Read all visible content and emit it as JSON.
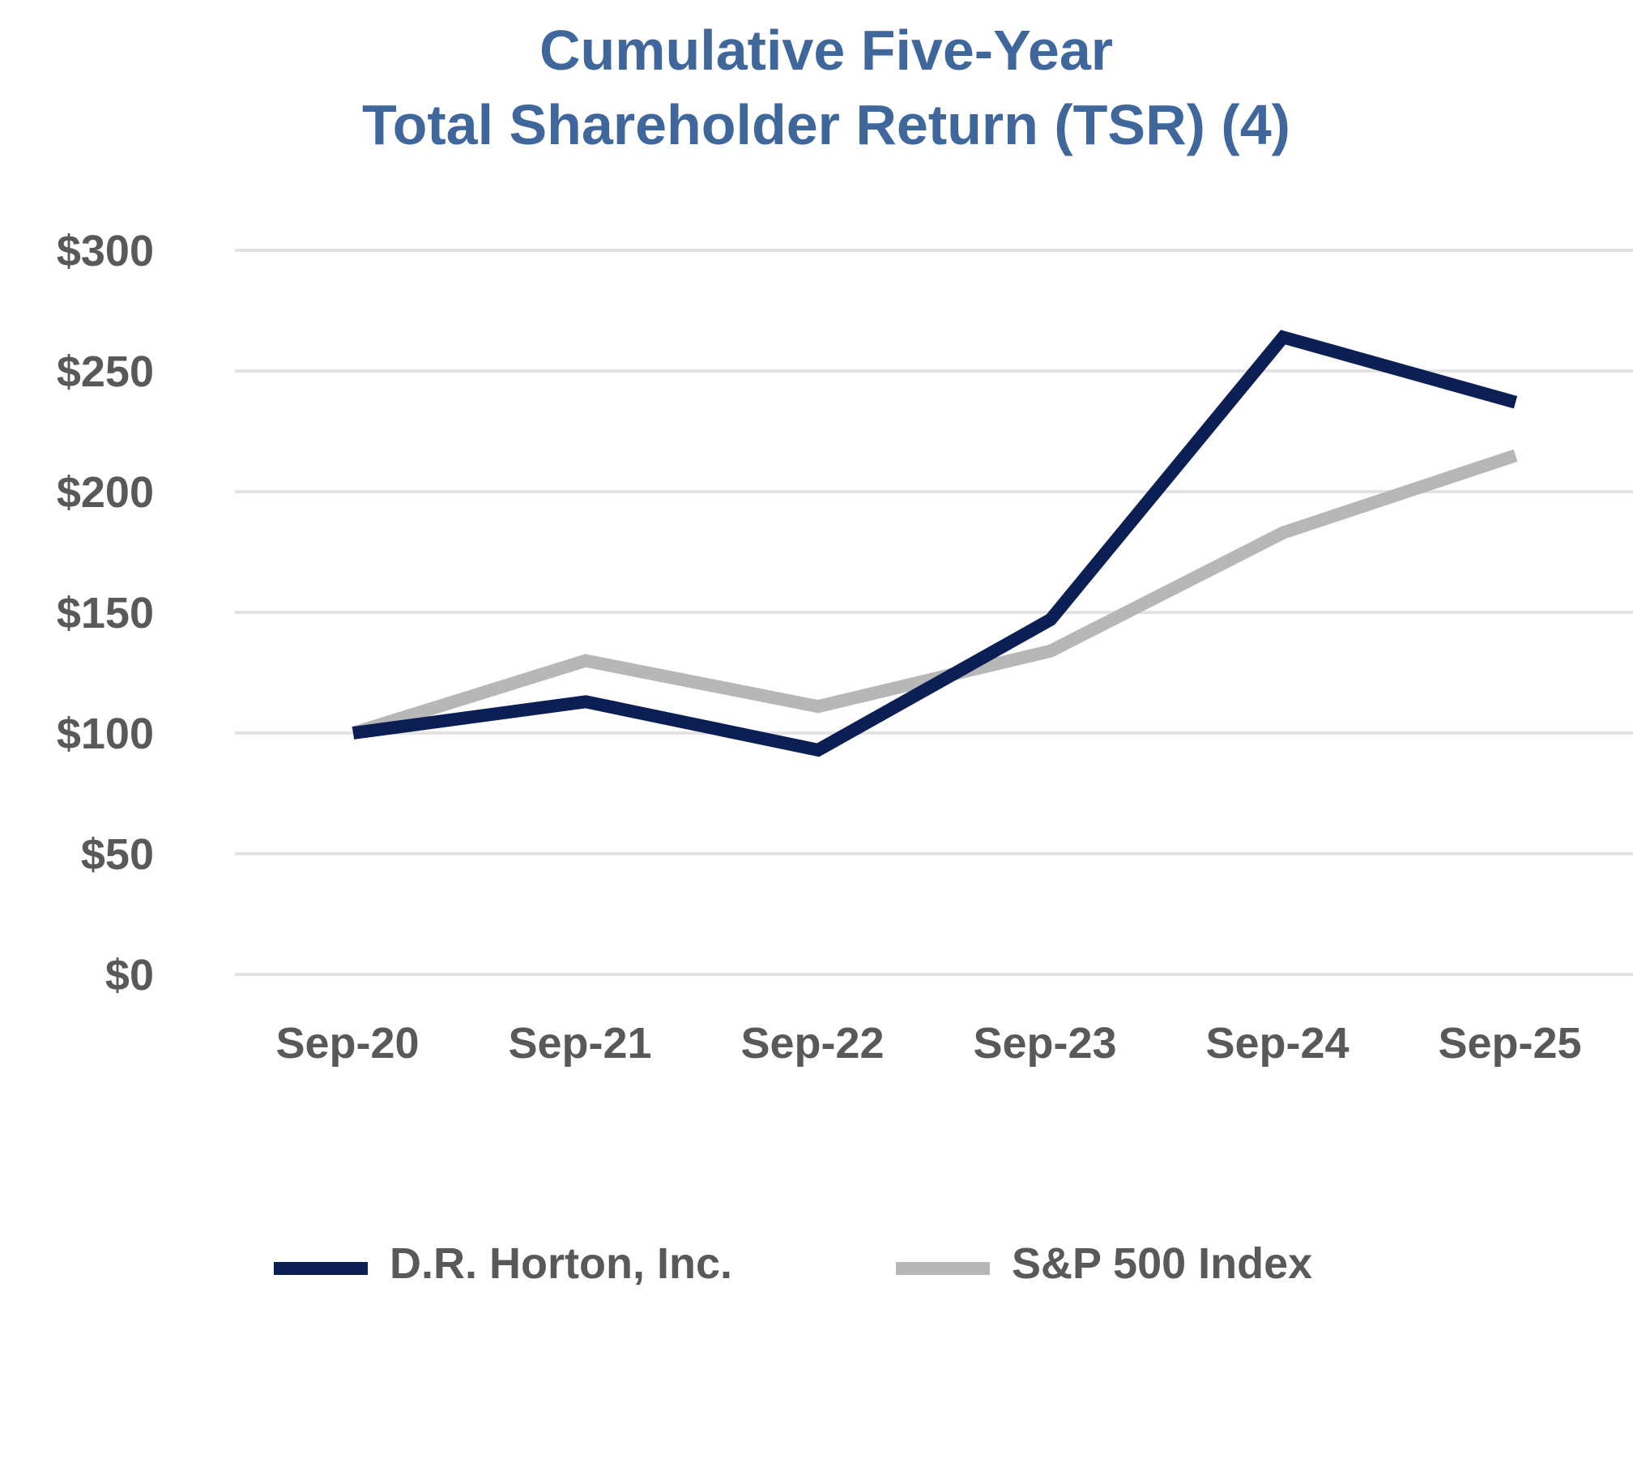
{
  "chart_data": {
    "type": "line",
    "title": "Cumulative Five-Year",
    "subtitle": "Total Shareholder Return (TSR) (4)",
    "categories": [
      "Sep-20",
      "Sep-21",
      "Sep-22",
      "Sep-23",
      "Sep-24",
      "Sep-25"
    ],
    "series": [
      {
        "name": "D.R. Horton, Inc.",
        "color": "#0c1f55",
        "values": [
          100,
          113,
          93,
          147,
          264,
          237
        ]
      },
      {
        "name": "S&P 500 Index",
        "color": "#b7b7b7",
        "values": [
          100,
          130,
          111,
          134,
          183,
          215
        ]
      }
    ],
    "yticks": [
      0,
      50,
      100,
      150,
      200,
      250,
      300
    ],
    "ytick_labels": [
      "$0",
      "$50",
      "$100",
      "$150",
      "$200",
      "$250",
      "$300"
    ],
    "ylim": [
      0,
      300
    ],
    "grid": true,
    "gridline_color": "#e3e3e3",
    "legend_position": "bottom",
    "xlabel": "",
    "ylabel": ""
  }
}
